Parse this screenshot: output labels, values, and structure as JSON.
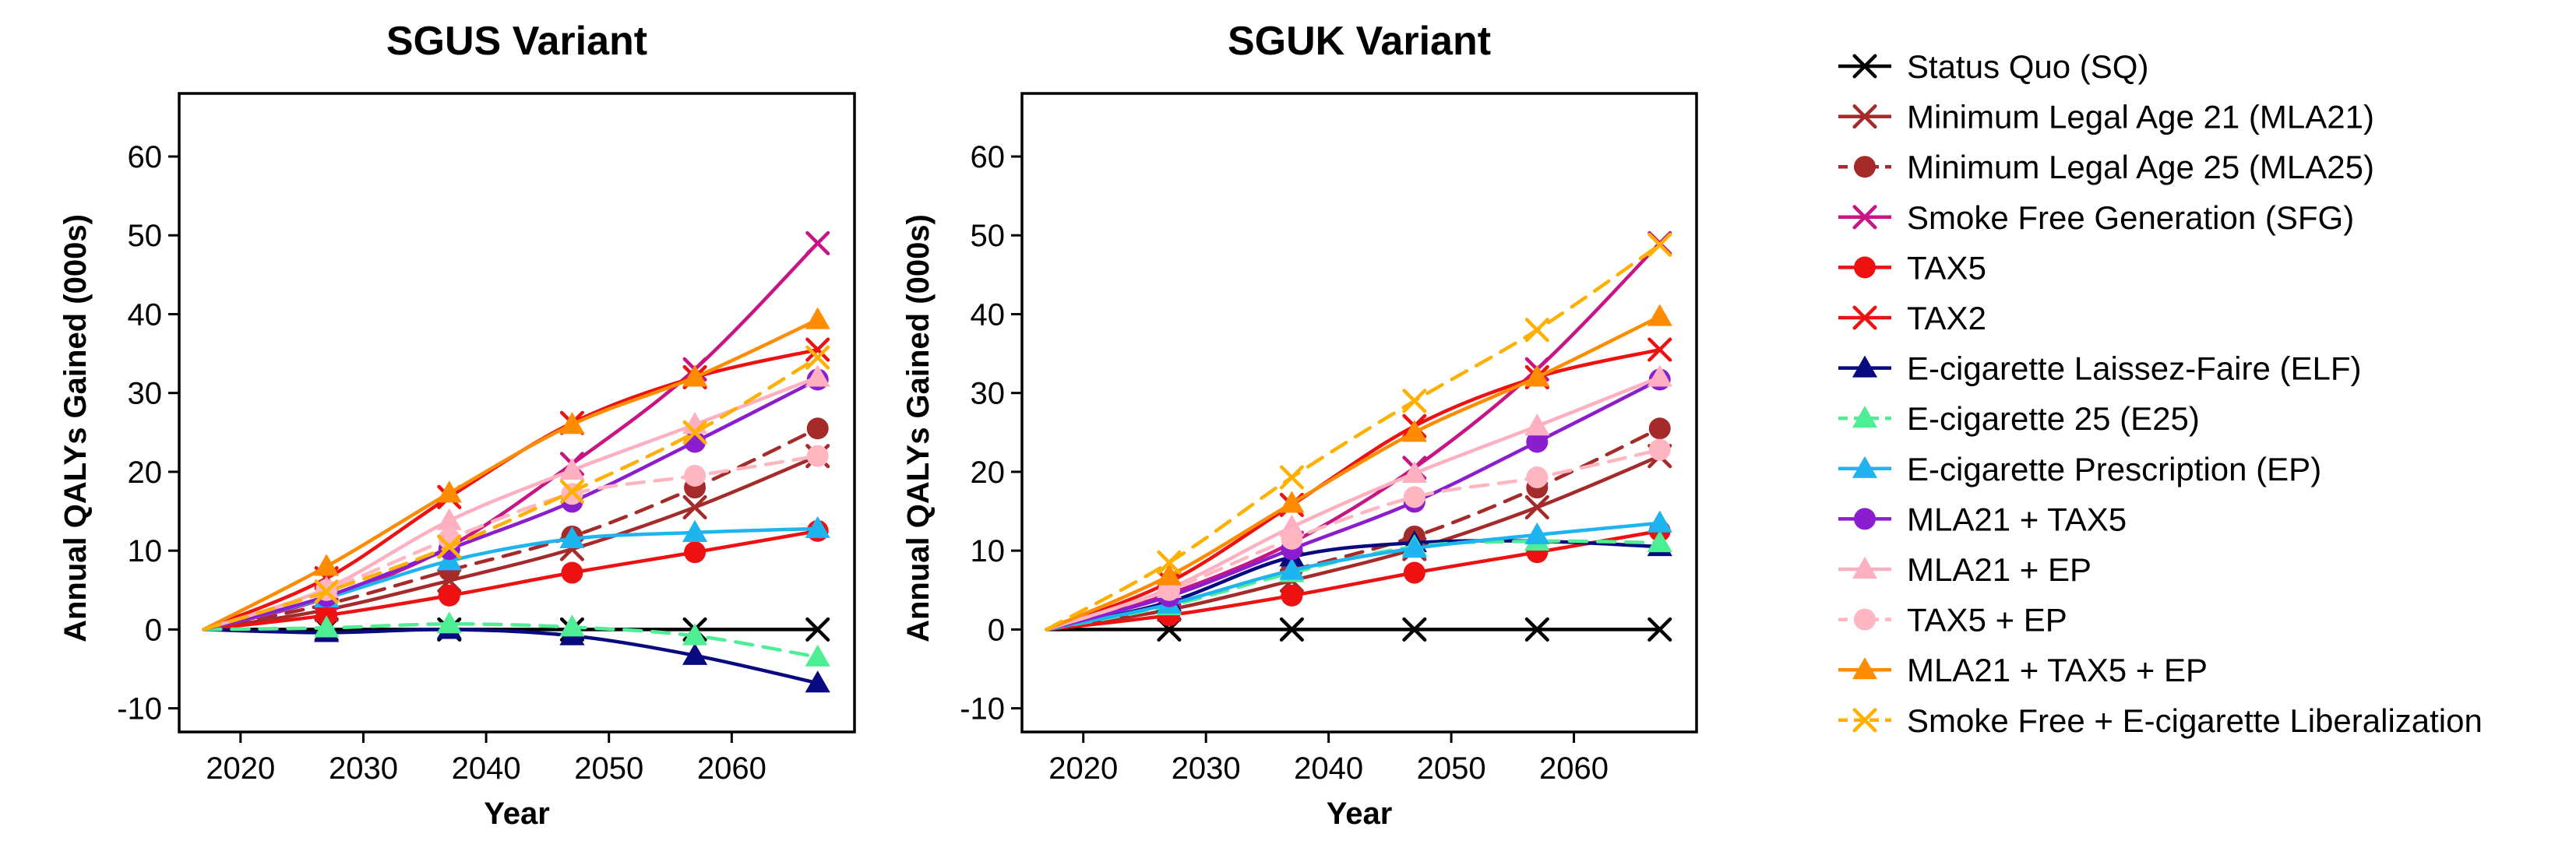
{
  "chart_data": [
    {
      "type": "line",
      "title": "SGUS Variant",
      "xlabel": "Year",
      "ylabel": "Annual QALYs Gained (000s)",
      "xlim": [
        2015,
        2070
      ],
      "ylim": [
        -13,
        68
      ],
      "xticks": [
        2020,
        2030,
        2040,
        2050,
        2060
      ],
      "yticks": [
        -10,
        0,
        10,
        20,
        30,
        40,
        50,
        60
      ],
      "grid": false,
      "series": [
        {
          "key": "SQ",
          "x": [
            2017,
            2027,
            2037,
            2047,
            2057,
            2067
          ],
          "y": [
            0,
            0,
            0,
            0,
            0,
            0
          ]
        },
        {
          "key": "MLA21",
          "x": [
            2017,
            2027,
            2037,
            2047,
            2057,
            2067
          ],
          "y": [
            0,
            2.5,
            6.2,
            10.2,
            15.5,
            22
          ]
        },
        {
          "key": "MLA25",
          "x": [
            2017,
            2027,
            2037,
            2047,
            2057,
            2067
          ],
          "y": [
            0,
            3.2,
            7.5,
            11.8,
            18,
            25.5
          ]
        },
        {
          "key": "SFG",
          "x": [
            2017,
            2027,
            2037,
            2047,
            2057,
            2067
          ],
          "y": [
            0,
            4,
            10.5,
            21,
            33,
            49
          ]
        },
        {
          "key": "TAX5",
          "x": [
            2017,
            2027,
            2037,
            2047,
            2057,
            2067
          ],
          "y": [
            0,
            1.8,
            4.3,
            7.2,
            9.8,
            12.5
          ]
        },
        {
          "key": "TAX2",
          "x": [
            2017,
            2027,
            2037,
            2047,
            2057,
            2067
          ],
          "y": [
            0,
            6.5,
            16.8,
            26.2,
            32,
            35.5
          ]
        },
        {
          "key": "ELF",
          "x": [
            2017,
            2027,
            2037,
            2047,
            2057,
            2067
          ],
          "y": [
            0,
            -0.4,
            0,
            -0.8,
            -3.3,
            -6.8
          ]
        },
        {
          "key": "E25",
          "x": [
            2017,
            2027,
            2037,
            2047,
            2057,
            2067
          ],
          "y": [
            0,
            0.2,
            0.7,
            0.3,
            -0.8,
            -3.5
          ]
        },
        {
          "key": "EP",
          "x": [
            2017,
            2027,
            2037,
            2047,
            2057,
            2067
          ],
          "y": [
            0,
            4,
            8.7,
            11.5,
            12.3,
            12.8
          ]
        },
        {
          "key": "MLA21_TAX5",
          "x": [
            2017,
            2027,
            2037,
            2047,
            2057,
            2067
          ],
          "y": [
            0,
            4.2,
            10.2,
            16.2,
            23.8,
            31.7
          ]
        },
        {
          "key": "MLA21_EP",
          "x": [
            2017,
            2027,
            2037,
            2047,
            2057,
            2067
          ],
          "y": [
            0,
            5.2,
            13.8,
            20.2,
            26,
            32
          ]
        },
        {
          "key": "TAX5_EP",
          "x": [
            2017,
            2027,
            2037,
            2047,
            2057,
            2067
          ],
          "y": [
            0,
            5,
            11.5,
            17.2,
            19.5,
            22
          ]
        },
        {
          "key": "MLA21_TAX5_EP",
          "x": [
            2017,
            2027,
            2037,
            2047,
            2057,
            2067
          ],
          "y": [
            0,
            8,
            17.3,
            26,
            32,
            39.3
          ]
        },
        {
          "key": "SFEL",
          "x": [
            2017,
            2027,
            2037,
            2047,
            2057,
            2067
          ],
          "y": [
            0,
            4.8,
            10.5,
            17.5,
            25,
            34.5
          ]
        }
      ]
    },
    {
      "type": "line",
      "title": "SGUK Variant",
      "xlabel": "Year",
      "ylabel": "Annual QALYs Gained (000s)",
      "xlim": [
        2015,
        2070
      ],
      "ylim": [
        -13,
        68
      ],
      "xticks": [
        2020,
        2030,
        2040,
        2050,
        2060
      ],
      "yticks": [
        -10,
        0,
        10,
        20,
        30,
        40,
        50,
        60
      ],
      "grid": false,
      "series": [
        {
          "key": "SQ",
          "x": [
            2017,
            2027,
            2037,
            2047,
            2057,
            2067
          ],
          "y": [
            0,
            0,
            0,
            0,
            0,
            0
          ]
        },
        {
          "key": "MLA21",
          "x": [
            2017,
            2027,
            2037,
            2047,
            2057,
            2067
          ],
          "y": [
            0,
            2.5,
            6.2,
            10.2,
            15.5,
            22
          ]
        },
        {
          "key": "MLA25",
          "x": [
            2017,
            2027,
            2037,
            2047,
            2057,
            2067
          ],
          "y": [
            0,
            3.2,
            7.5,
            11.8,
            18,
            25.5
          ]
        },
        {
          "key": "SFG",
          "x": [
            2017,
            2027,
            2037,
            2047,
            2057,
            2067
          ],
          "y": [
            0,
            4.5,
            11,
            20.5,
            33,
            49
          ]
        },
        {
          "key": "TAX5",
          "x": [
            2017,
            2027,
            2037,
            2047,
            2057,
            2067
          ],
          "y": [
            0,
            1.8,
            4.3,
            7.2,
            9.8,
            12.5
          ]
        },
        {
          "key": "TAX2",
          "x": [
            2017,
            2027,
            2037,
            2047,
            2057,
            2067
          ],
          "y": [
            0,
            6,
            15.8,
            25.8,
            32,
            35.5
          ]
        },
        {
          "key": "ELF",
          "x": [
            2017,
            2027,
            2037,
            2047,
            2057,
            2067
          ],
          "y": [
            0,
            3.5,
            9.2,
            11,
            11.2,
            10.5
          ]
        },
        {
          "key": "E25",
          "x": [
            2017,
            2027,
            2037,
            2047,
            2057,
            2067
          ],
          "y": [
            0,
            3,
            7.2,
            10.5,
            11.2,
            11
          ]
        },
        {
          "key": "EP",
          "x": [
            2017,
            2027,
            2037,
            2047,
            2057,
            2067
          ],
          "y": [
            0,
            3.2,
            7.5,
            10.3,
            12,
            13.5
          ]
        },
        {
          "key": "MLA21_TAX5",
          "x": [
            2017,
            2027,
            2037,
            2047,
            2057,
            2067
          ],
          "y": [
            0,
            4.2,
            10.2,
            16.2,
            23.8,
            31.7
          ]
        },
        {
          "key": "MLA21_EP",
          "x": [
            2017,
            2027,
            2037,
            2047,
            2057,
            2067
          ],
          "y": [
            0,
            5.2,
            13,
            19.8,
            25.8,
            32
          ]
        },
        {
          "key": "TAX5_EP",
          "x": [
            2017,
            2027,
            2037,
            2047,
            2057,
            2067
          ],
          "y": [
            0,
            5,
            11.5,
            16.8,
            19.3,
            22.8
          ]
        },
        {
          "key": "MLA21_TAX5_EP",
          "x": [
            2017,
            2027,
            2037,
            2047,
            2057,
            2067
          ],
          "y": [
            0,
            6.8,
            16,
            25,
            32,
            39.7
          ]
        },
        {
          "key": "SFEL",
          "x": [
            2017,
            2027,
            2037,
            2047,
            2057,
            2067
          ],
          "y": [
            0,
            8.5,
            19.3,
            29,
            38,
            48.8
          ]
        }
      ]
    }
  ],
  "legend": {
    "placement": "right",
    "items": [
      {
        "key": "SQ",
        "label": "Status Quo (SQ)",
        "color": "#000000",
        "marker": "x",
        "dashed": false
      },
      {
        "key": "MLA21",
        "label": "Minimum Legal Age 21 (MLA21)",
        "color": "#A52A2A",
        "marker": "x",
        "dashed": false
      },
      {
        "key": "MLA25",
        "label": "Minimum Legal Age 25 (MLA25)",
        "color": "#A52A2A",
        "marker": "circle",
        "dashed": true
      },
      {
        "key": "SFG",
        "label": "Smoke Free Generation (SFG)",
        "color": "#C71585",
        "marker": "x",
        "dashed": false
      },
      {
        "key": "TAX5",
        "label": "TAX5",
        "color": "#EE1111",
        "marker": "circle",
        "dashed": false
      },
      {
        "key": "TAX2",
        "label": "TAX2",
        "color": "#EE1111",
        "marker": "x",
        "dashed": false
      },
      {
        "key": "ELF",
        "label": "E-cigarette Laissez-Faire (ELF)",
        "color": "#0A0A80",
        "marker": "triangle",
        "dashed": false
      },
      {
        "key": "E25",
        "label": "E-cigarette 25 (E25)",
        "color": "#4EEE94",
        "marker": "triangle",
        "dashed": true
      },
      {
        "key": "EP",
        "label": "E-cigarette Prescription (EP)",
        "color": "#1EB4F0",
        "marker": "triangle",
        "dashed": false
      },
      {
        "key": "MLA21_TAX5",
        "label": "MLA21 + TAX5",
        "color": "#8A1ECF",
        "marker": "circle",
        "dashed": false
      },
      {
        "key": "MLA21_EP",
        "label": "MLA21 + EP",
        "color": "#FFB0C0",
        "marker": "triangle",
        "dashed": false
      },
      {
        "key": "TAX5_EP",
        "label": "TAX5 + EP",
        "color": "#FFB6C1",
        "marker": "circle",
        "dashed": true
      },
      {
        "key": "MLA21_TAX5_EP",
        "label": "MLA21 + TAX5 + EP",
        "color": "#FF8C00",
        "marker": "triangle",
        "dashed": false
      },
      {
        "key": "SFEL",
        "label": "Smoke Free + E-cigarette Liberalization",
        "color": "#FFB000",
        "marker": "x",
        "dashed": true
      }
    ]
  }
}
